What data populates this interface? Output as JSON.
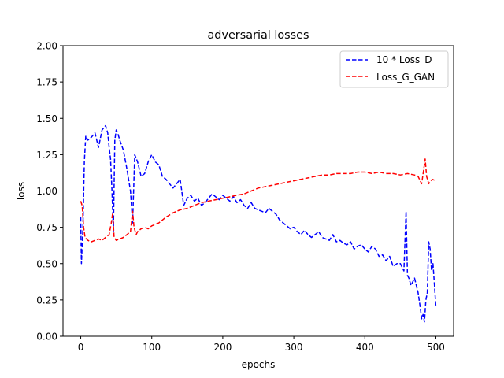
{
  "chart_data": {
    "type": "line",
    "title": "adversarial losses",
    "xlabel": "epochs",
    "ylabel": "loss",
    "xlim": [
      -25,
      525
    ],
    "ylim": [
      0.0,
      2.0
    ],
    "xticks": [
      0,
      100,
      200,
      300,
      400,
      500
    ],
    "yticks": [
      0.0,
      0.25,
      0.5,
      0.75,
      1.0,
      1.25,
      1.5,
      1.75,
      2.0
    ],
    "xtick_labels": [
      "0",
      "100",
      "200",
      "300",
      "400",
      "500"
    ],
    "ytick_labels": [
      "0.00",
      "0.25",
      "0.50",
      "0.75",
      "1.00",
      "1.25",
      "1.50",
      "1.75",
      "2.00"
    ],
    "grid": false,
    "legend": "top-right",
    "series": [
      {
        "name": "10 * Loss_D",
        "color": "#0000ff",
        "linestyle": "dashed",
        "x": [
          0,
          1,
          3,
          5,
          7,
          10,
          15,
          20,
          25,
          30,
          35,
          38,
          40,
          42,
          44,
          46,
          48,
          50,
          52,
          55,
          60,
          65,
          70,
          73,
          76,
          80,
          85,
          90,
          95,
          100,
          105,
          110,
          115,
          120,
          125,
          130,
          135,
          140,
          145,
          150,
          155,
          160,
          165,
          170,
          175,
          180,
          185,
          190,
          195,
          200,
          205,
          210,
          215,
          220,
          225,
          230,
          235,
          240,
          245,
          250,
          255,
          260,
          265,
          270,
          275,
          280,
          285,
          290,
          295,
          300,
          305,
          310,
          315,
          320,
          325,
          330,
          335,
          340,
          345,
          350,
          355,
          360,
          365,
          370,
          375,
          380,
          385,
          390,
          395,
          400,
          405,
          410,
          415,
          420,
          425,
          430,
          435,
          440,
          445,
          450,
          455,
          458,
          460,
          462,
          465,
          470,
          475,
          478,
          480,
          482,
          484,
          486,
          488,
          490,
          492,
          494,
          496,
          498,
          500
        ],
        "y": [
          0.82,
          0.5,
          0.75,
          1.2,
          1.38,
          1.35,
          1.37,
          1.4,
          1.3,
          1.42,
          1.45,
          1.4,
          1.3,
          1.22,
          1.0,
          0.72,
          1.35,
          1.42,
          1.4,
          1.35,
          1.28,
          1.15,
          1.0,
          0.78,
          1.25,
          1.2,
          1.1,
          1.12,
          1.2,
          1.25,
          1.2,
          1.18,
          1.1,
          1.08,
          1.05,
          1.02,
          1.05,
          1.08,
          0.9,
          0.95,
          0.97,
          0.93,
          0.95,
          0.9,
          0.92,
          0.95,
          0.98,
          0.96,
          0.94,
          0.97,
          0.95,
          0.93,
          0.96,
          0.92,
          0.94,
          0.9,
          0.88,
          0.92,
          0.88,
          0.87,
          0.86,
          0.85,
          0.88,
          0.86,
          0.84,
          0.8,
          0.78,
          0.76,
          0.74,
          0.75,
          0.72,
          0.7,
          0.73,
          0.7,
          0.68,
          0.7,
          0.72,
          0.68,
          0.67,
          0.66,
          0.7,
          0.65,
          0.66,
          0.64,
          0.63,
          0.65,
          0.6,
          0.62,
          0.63,
          0.6,
          0.58,
          0.62,
          0.6,
          0.55,
          0.56,
          0.52,
          0.55,
          0.48,
          0.5,
          0.5,
          0.45,
          0.86,
          0.42,
          0.4,
          0.35,
          0.4,
          0.3,
          0.2,
          0.12,
          0.15,
          0.1,
          0.25,
          0.3,
          0.65,
          0.6,
          0.45,
          0.5,
          0.35,
          0.2
        ]
      },
      {
        "name": "Loss_G_GAN",
        "color": "#ff0000",
        "linestyle": "dashed",
        "x": [
          0,
          2,
          4,
          6,
          8,
          10,
          15,
          20,
          25,
          30,
          35,
          40,
          43,
          45,
          47,
          50,
          55,
          60,
          65,
          70,
          73,
          75,
          78,
          80,
          85,
          90,
          95,
          100,
          110,
          120,
          130,
          140,
          150,
          160,
          170,
          180,
          190,
          200,
          210,
          220,
          230,
          240,
          250,
          260,
          270,
          280,
          290,
          300,
          310,
          320,
          330,
          340,
          350,
          360,
          370,
          380,
          390,
          400,
          410,
          420,
          430,
          440,
          450,
          460,
          470,
          475,
          480,
          483,
          485,
          487,
          490,
          495,
          500
        ],
        "y": [
          0.93,
          0.9,
          0.75,
          0.68,
          0.67,
          0.66,
          0.65,
          0.66,
          0.67,
          0.66,
          0.68,
          0.7,
          0.78,
          0.85,
          0.68,
          0.66,
          0.67,
          0.68,
          0.7,
          0.72,
          0.86,
          0.75,
          0.7,
          0.72,
          0.74,
          0.75,
          0.74,
          0.76,
          0.78,
          0.82,
          0.85,
          0.87,
          0.88,
          0.9,
          0.92,
          0.93,
          0.94,
          0.95,
          0.96,
          0.97,
          0.98,
          1.0,
          1.02,
          1.03,
          1.04,
          1.05,
          1.06,
          1.07,
          1.08,
          1.09,
          1.1,
          1.11,
          1.11,
          1.12,
          1.12,
          1.12,
          1.13,
          1.13,
          1.12,
          1.13,
          1.12,
          1.12,
          1.11,
          1.12,
          1.11,
          1.1,
          1.05,
          1.15,
          1.22,
          1.1,
          1.05,
          1.08,
          1.07
        ]
      }
    ]
  }
}
